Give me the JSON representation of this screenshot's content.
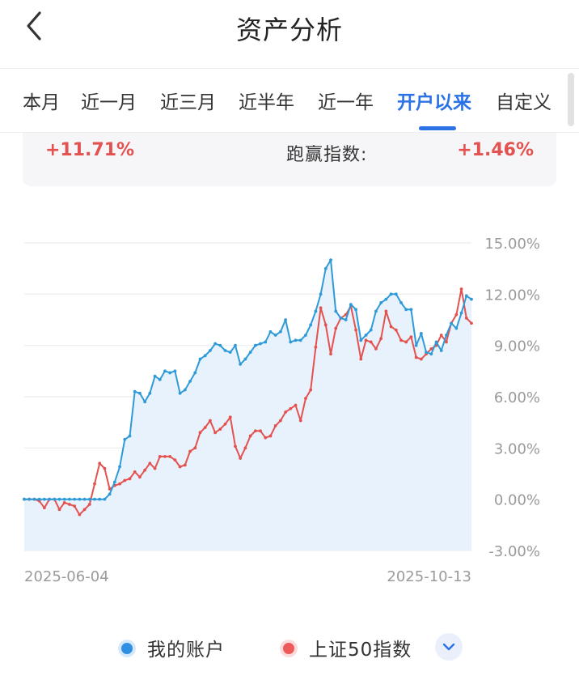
{
  "header": {
    "title": "资产分析",
    "back_icon": "chevron-left-icon"
  },
  "tabs": [
    {
      "label": "本月",
      "active": false
    },
    {
      "label": "近一月",
      "active": false
    },
    {
      "label": "近三月",
      "active": false
    },
    {
      "label": "近半年",
      "active": false
    },
    {
      "label": "近一年",
      "active": false
    },
    {
      "label": "开户以来",
      "active": true
    },
    {
      "label": "自定义",
      "active": false
    }
  ],
  "summary": {
    "my_return": "+11.71%",
    "beat_label": "跑赢指数:",
    "beat_value": "+1.46%"
  },
  "legend": {
    "account_label": "我的账户",
    "index_label": "上证50指数",
    "toggle_icon": "chevron-down-icon"
  },
  "colors": {
    "accent": "#2b72e6",
    "account_line": "#2f9ad8",
    "index_line": "#e3524f",
    "area_fill": "#e8f2fc",
    "positive": "#e3524f"
  },
  "chart_data": {
    "type": "line",
    "x_start": "2025-06-04",
    "x_end": "2025-10-13",
    "x_tick_labels": [
      "2025-06-04",
      "2025-10-13"
    ],
    "ylim": [
      -3,
      15
    ],
    "y_ticks": [
      15,
      12,
      9,
      6,
      3,
      0,
      -3
    ],
    "y_tick_labels": [
      "15.00%",
      "12.00%",
      "9.00%",
      "6.00%",
      "3.00%",
      "0.00%",
      "-3.00%"
    ],
    "grid": true,
    "legend_position": "bottom",
    "series": [
      {
        "name": "我的账户",
        "values": [
          0,
          0,
          0,
          0,
          0,
          0,
          0,
          0,
          0,
          0,
          0,
          0,
          0,
          0,
          0,
          0,
          0,
          0.3,
          1.0,
          1.9,
          3.5,
          3.7,
          6.3,
          6.2,
          5.7,
          6.2,
          7.2,
          7.0,
          7.5,
          7.4,
          7.5,
          6.2,
          6.4,
          6.9,
          7.4,
          8.2,
          8.4,
          8.7,
          9.1,
          9.0,
          8.7,
          8.6,
          9.0,
          7.9,
          8.2,
          8.6,
          9.0,
          9.1,
          9.2,
          9.8,
          9.6,
          9.8,
          10.5,
          9.2,
          9.3,
          9.3,
          9.6,
          10.2,
          11.0,
          12.0,
          13.5,
          14.0,
          11.0,
          10.6,
          10.5,
          11.4,
          11.1,
          9.3,
          9.6,
          9.9,
          11.0,
          11.5,
          11.7,
          12.0,
          12.0,
          11.5,
          11.1,
          11.1,
          9.0,
          9.7,
          8.6,
          8.5,
          9.2,
          8.7,
          9.6,
          10.3,
          10.0,
          10.9,
          11.9,
          11.7
        ]
      },
      {
        "name": "上证50指数",
        "values": [
          0,
          0,
          0,
          -0.1,
          -0.5,
          0,
          0,
          -0.6,
          -0.2,
          -0.3,
          -0.4,
          -0.9,
          -0.6,
          -0.3,
          0.9,
          2.1,
          1.8,
          0.6,
          0.8,
          0.9,
          1.1,
          1.2,
          1.6,
          1.3,
          1.7,
          2.1,
          1.8,
          2.5,
          2.5,
          2.5,
          2.3,
          1.9,
          2.0,
          2.8,
          3.0,
          3.9,
          4.2,
          4.6,
          3.9,
          4.1,
          4.4,
          4.8,
          3.1,
          2.4,
          3.0,
          3.7,
          4.0,
          4.0,
          3.6,
          3.7,
          4.3,
          4.6,
          5.1,
          5.3,
          5.5,
          4.6,
          5.9,
          6.4,
          8.9,
          11.2,
          10.2,
          8.5,
          10.0,
          10.6,
          10.8,
          11.3,
          9.9,
          8.2,
          9.3,
          9.2,
          8.8,
          9.4,
          11.0,
          10.1,
          9.9,
          9.3,
          9.2,
          9.5,
          8.3,
          8.2,
          8.5,
          8.8,
          9.0,
          9.6,
          9.2,
          10.3,
          10.8,
          12.3,
          10.6,
          10.3
        ]
      }
    ]
  }
}
